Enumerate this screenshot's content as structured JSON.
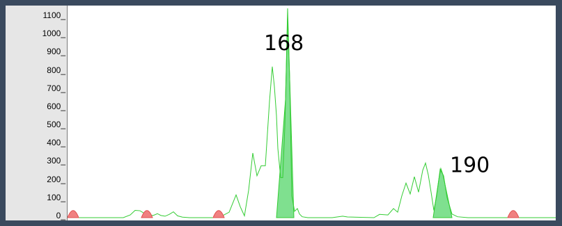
{
  "chart_data": {
    "type": "area",
    "title": "",
    "xlabel": "",
    "ylabel": "",
    "ylim": [
      0,
      1150
    ],
    "xlim": [
      0,
      701
    ],
    "grid": false,
    "y_ticks": [
      {
        "value": 0,
        "label": "0_"
      },
      {
        "value": 100,
        "label": "100_"
      },
      {
        "value": 200,
        "label": "200_"
      },
      {
        "value": 300,
        "label": "300_"
      },
      {
        "value": 400,
        "label": "400_"
      },
      {
        "value": 500,
        "label": "500_"
      },
      {
        "value": 600,
        "label": "600_"
      },
      {
        "value": 700,
        "label": "700_"
      },
      {
        "value": 800,
        "label": "800_"
      },
      {
        "value": 900,
        "label": "900_"
      },
      {
        "value": 1000,
        "label": "1000_"
      },
      {
        "value": 1100,
        "label": "1100_"
      }
    ],
    "colors": {
      "trace": "#33cc33",
      "peak_fill": "#7fe08f",
      "size_marker": "#e05050",
      "size_marker_fill": "#f08080"
    },
    "series": [
      {
        "points": [
          [
            0,
            0
          ],
          [
            80,
            0
          ],
          [
            90,
            15
          ],
          [
            97,
            40
          ],
          [
            104,
            38
          ],
          [
            111,
            22
          ],
          [
            117,
            15
          ],
          [
            123,
            12
          ],
          [
            129,
            22
          ],
          [
            134,
            12
          ],
          [
            140,
            8
          ],
          [
            146,
            18
          ],
          [
            152,
            32
          ],
          [
            158,
            10
          ],
          [
            165,
            3
          ],
          [
            175,
            0
          ],
          [
            200,
            0
          ],
          [
            214,
            0
          ],
          [
            222,
            10
          ],
          [
            232,
            30
          ],
          [
            242,
            125
          ],
          [
            248,
            60
          ],
          [
            254,
            10
          ],
          [
            260,
            150
          ],
          [
            266,
            355
          ],
          [
            272,
            230
          ],
          [
            278,
            285
          ],
          [
            284,
            285
          ],
          [
            290,
            640
          ],
          [
            294,
            830
          ],
          [
            297,
            720
          ],
          [
            300,
            560
          ],
          [
            302,
            380
          ],
          [
            306,
            220
          ],
          [
            309,
            220
          ],
          [
            312,
            500
          ],
          [
            316,
            1100
          ],
          [
            319,
            760
          ],
          [
            322,
            120
          ],
          [
            326,
            35
          ],
          [
            330,
            50
          ],
          [
            333,
            20
          ],
          [
            337,
            5
          ],
          [
            345,
            0
          ],
          [
            380,
            0
          ],
          [
            395,
            8
          ],
          [
            402,
            4
          ],
          [
            440,
            0
          ],
          [
            448,
            18
          ],
          [
            460,
            15
          ],
          [
            468,
            50
          ],
          [
            474,
            30
          ],
          [
            480,
            120
          ],
          [
            486,
            190
          ],
          [
            492,
            130
          ],
          [
            498,
            225
          ],
          [
            504,
            140
          ],
          [
            510,
            260
          ],
          [
            514,
            300
          ],
          [
            518,
            235
          ],
          [
            522,
            140
          ],
          [
            526,
            40
          ],
          [
            530,
            120
          ],
          [
            535,
            265
          ],
          [
            540,
            230
          ],
          [
            545,
            110
          ],
          [
            552,
            20
          ],
          [
            560,
            5
          ],
          [
            575,
            0
          ],
          [
            701,
            0
          ]
        ]
      }
    ],
    "called_peaks": [
      {
        "label": "168",
        "x_start": 300,
        "x_end": 325,
        "apex_x": 316,
        "apex_y": 1150
      },
      {
        "label": "190",
        "x_start": 525,
        "x_end": 552,
        "apex_x": 536,
        "apex_y": 270
      }
    ],
    "size_standard_peaks": [
      {
        "x": 8,
        "height": 40
      },
      {
        "x": 114,
        "height": 40
      },
      {
        "x": 217,
        "height": 40
      },
      {
        "x": 640,
        "height": 40
      }
    ],
    "annotations": [
      {
        "text": "168",
        "x": 282,
        "y": 920
      },
      {
        "text": "190",
        "x": 549,
        "y": 250
      }
    ]
  }
}
